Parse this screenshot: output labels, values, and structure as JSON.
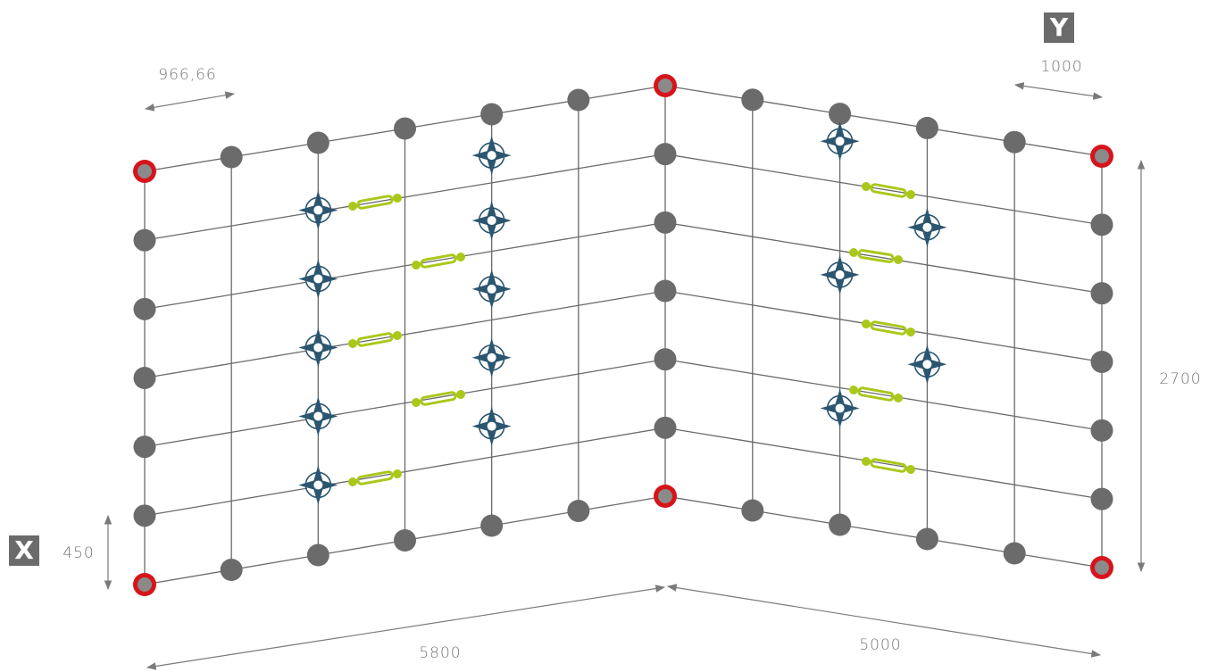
{
  "axes": {
    "x_label": "X",
    "y_label": "Y"
  },
  "dimensions": {
    "post_spacing_left": "966,66",
    "post_spacing_right": "1000",
    "height": "2700",
    "bottom_offset": "450",
    "length_left": "5800",
    "length_right": "5000"
  },
  "legend_colors": {
    "grid_line": "#6a6a6a",
    "node": "#6b6b6b",
    "corner_ring": "#d7141b",
    "anchor": "#2b5670",
    "turnbuckle": "#a9c81a",
    "dimension_line": "#7a7a7a"
  }
}
